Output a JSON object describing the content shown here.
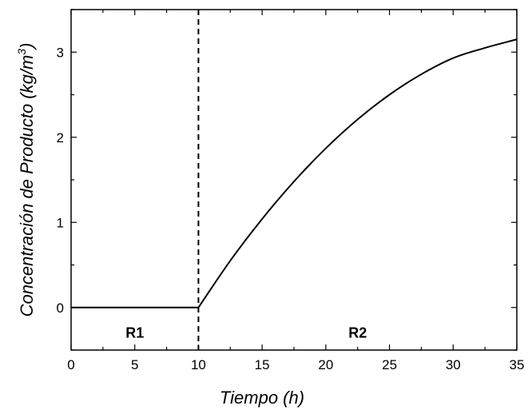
{
  "chart_data": {
    "type": "line",
    "title": "",
    "xlabel": "Tiempo (h)",
    "ylabel_main": "Concentración de Producto (kg/m",
    "ylabel_sup": "3",
    "ylabel_close": ")",
    "xlim": [
      0,
      35
    ],
    "ylim": [
      -0.5,
      3.5
    ],
    "x_ticks": [
      0,
      5,
      10,
      15,
      20,
      25,
      30,
      35
    ],
    "y_ticks": [
      0,
      1,
      2,
      3
    ],
    "grid": false,
    "series": [
      {
        "color": "#000000",
        "x": [
          0,
          10,
          12.5,
          15,
          17.5,
          20,
          22.5,
          25,
          27.5,
          30,
          32.5,
          35
        ],
        "y": [
          0,
          0,
          0.55,
          1.04,
          1.48,
          1.87,
          2.21,
          2.5,
          2.74,
          2.93,
          3.05,
          3.15
        ]
      }
    ],
    "vline": {
      "x": 10,
      "style": "dashed"
    },
    "annotations": [
      {
        "text": "R1",
        "x": 5,
        "y": -0.3
      },
      {
        "text": "R2",
        "x": 22.5,
        "y": -0.3
      }
    ]
  }
}
